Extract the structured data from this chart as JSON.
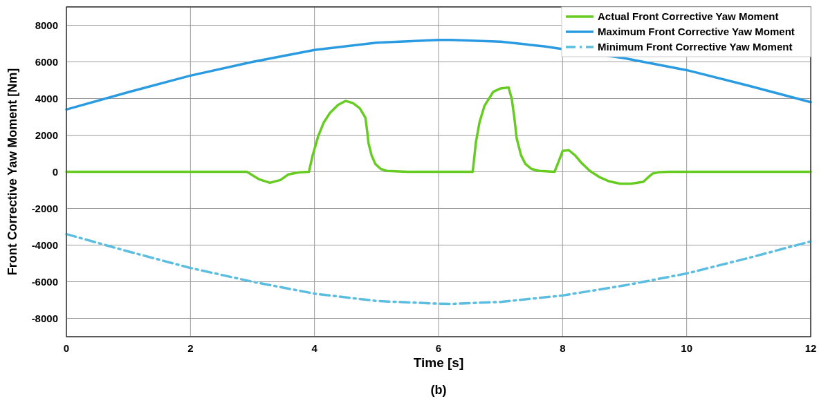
{
  "chart_data": {
    "type": "line",
    "xlabel": "Time [s]",
    "ylabel": "Front Corrective Yaw Moment [Nm]",
    "annotations": [
      "(b)"
    ],
    "xlim": [
      0,
      12
    ],
    "ylim": [
      -9000,
      9000
    ],
    "xticks": [
      0,
      2,
      4,
      6,
      8,
      10,
      12
    ],
    "yticks": [
      -8000,
      -6000,
      -4000,
      -2000,
      0,
      2000,
      4000,
      6000,
      8000
    ],
    "grid": true,
    "legend": "top right",
    "series": [
      {
        "name": "Actual Front Corrective Yaw Moment",
        "color": "#66cc22",
        "line_style": "solid",
        "x": [
          0,
          2.91,
          3.1,
          3.28,
          3.45,
          3.58,
          3.75,
          3.91,
          3.97,
          4.06,
          4.15,
          4.25,
          4.38,
          4.5,
          4.62,
          4.73,
          4.82,
          4.85,
          4.87,
          4.92,
          4.98,
          5.07,
          5.17,
          5.5,
          6.55,
          6.58,
          6.6,
          6.66,
          6.74,
          6.88,
          7.0,
          7.13,
          7.18,
          7.22,
          7.26,
          7.33,
          7.4,
          7.5,
          7.63,
          7.87,
          7.94,
          8.0,
          8.1,
          8.2,
          8.3,
          8.44,
          8.6,
          8.75,
          8.93,
          9.1,
          9.3,
          9.38,
          9.45,
          9.55,
          9.7,
          12
        ],
        "values": [
          0,
          0,
          -400,
          -600,
          -450,
          -140,
          -30,
          0,
          900,
          1950,
          2700,
          3220,
          3650,
          3870,
          3750,
          3470,
          2960,
          2200,
          1570,
          900,
          430,
          150,
          50,
          0,
          0,
          900,
          1570,
          2700,
          3600,
          4360,
          4550,
          4600,
          3980,
          3000,
          1820,
          900,
          430,
          150,
          50,
          0,
          600,
          1140,
          1180,
          900,
          500,
          50,
          -300,
          -520,
          -650,
          -650,
          -550,
          -300,
          -100,
          -20,
          0,
          0
        ]
      },
      {
        "name": "Maximum Front Corrective Yaw Moment",
        "color": "#2a9be0",
        "line_style": "solid",
        "x": [
          0,
          1,
          2,
          3,
          4,
          5,
          6,
          6.2,
          7,
          7.7,
          9,
          10,
          11,
          12
        ],
        "values": [
          3400,
          4350,
          5250,
          6000,
          6650,
          7050,
          7200,
          7200,
          7100,
          6850,
          6200,
          5550,
          4700,
          3800
        ]
      },
      {
        "name": "Minimum Front Corrective Yaw Moment",
        "color": "#5bbde0",
        "line_style": "dashed",
        "x": [
          0,
          1,
          2,
          3,
          4,
          5,
          6,
          6.2,
          7,
          8,
          9,
          10,
          11,
          12
        ],
        "values": [
          -3400,
          -4350,
          -5250,
          -6000,
          -6650,
          -7050,
          -7200,
          -7210,
          -7100,
          -6750,
          -6200,
          -5550,
          -4700,
          -3800
        ]
      }
    ]
  }
}
